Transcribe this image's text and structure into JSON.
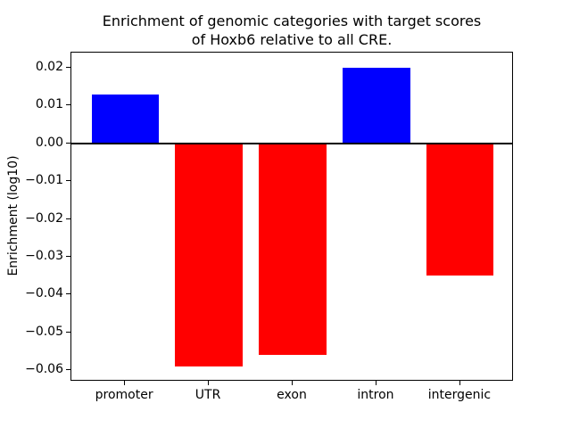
{
  "chart_data": {
    "type": "bar",
    "title": "Enrichment of genomic categories with target scores of Hoxb6 relative to all CRE.",
    "title_lines": [
      "Enrichment of genomic categories with target scores",
      "of Hoxb6 relative to all CRE."
    ],
    "xlabel": "",
    "ylabel": "Enrichment (log10)",
    "categories": [
      "promoter",
      "UTR",
      "exon",
      "intron",
      "intergenic"
    ],
    "values": [
      0.013,
      -0.059,
      -0.056,
      0.02,
      -0.035
    ],
    "yticks": [
      0.02,
      0.01,
      0.0,
      -0.01,
      -0.02,
      -0.03,
      -0.04,
      -0.05,
      -0.06
    ],
    "ylim": [
      -0.063,
      0.024
    ],
    "bar_width_frac": 0.8,
    "zero_line": true,
    "grid": false,
    "legend": null,
    "colors": {
      "positive_bar": "#0000ff",
      "negative_bar": "#ff0000",
      "axis": "#000000",
      "background": "#ffffff",
      "text": "#000000"
    }
  }
}
